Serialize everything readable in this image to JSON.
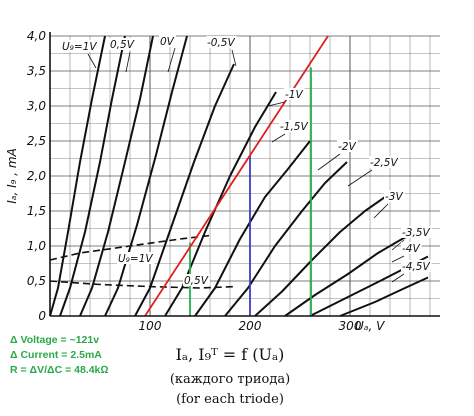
{
  "chart_data": {
    "type": "line",
    "title": "",
    "xlabel": "Uₐ, V",
    "ylabel": "Iₐ, I₉ , mA",
    "xlim": [
      0,
      390
    ],
    "ylim": [
      0,
      4.0
    ],
    "x_ticks": [
      "100",
      "200",
      "300"
    ],
    "y_ticks": [
      "0",
      "0,5",
      "1,0",
      "1,5",
      "2,0",
      "2,5",
      "3,0",
      "3,5",
      "4,0"
    ],
    "grid": true,
    "anode_curves": [
      {
        "name": "U₉=1V",
        "points": [
          [
            0,
            0
          ],
          [
            8,
            0.4
          ],
          [
            18,
            1.2
          ],
          [
            30,
            2.2
          ],
          [
            42,
            3.1
          ],
          [
            55,
            4.0
          ]
        ]
      },
      {
        "name": "0,5V",
        "points": [
          [
            10,
            0
          ],
          [
            20,
            0.4
          ],
          [
            35,
            1.2
          ],
          [
            50,
            2.2
          ],
          [
            62,
            3.1
          ],
          [
            75,
            4.0
          ]
        ]
      },
      {
        "name": "0V",
        "points": [
          [
            30,
            0
          ],
          [
            42,
            0.4
          ],
          [
            58,
            1.2
          ],
          [
            75,
            2.2
          ],
          [
            90,
            3.1
          ],
          [
            103,
            4.0
          ]
        ]
      },
      {
        "name": "-0,5V",
        "points": [
          [
            55,
            0
          ],
          [
            68,
            0.4
          ],
          [
            87,
            1.3
          ],
          [
            106,
            2.3
          ],
          [
            122,
            3.2
          ],
          [
            137,
            4.0
          ]
        ]
      },
      {
        "name": "-1V",
        "points": [
          [
            85,
            0
          ],
          [
            100,
            0.4
          ],
          [
            122,
            1.3
          ],
          [
            144,
            2.2
          ],
          [
            165,
            3.0
          ],
          [
            184,
            3.6
          ]
        ]
      },
      {
        "name": "-1,5V",
        "points": [
          [
            115,
            0
          ],
          [
            132,
            0.4
          ],
          [
            155,
            1.2
          ],
          [
            180,
            2.0
          ],
          [
            205,
            2.7
          ],
          [
            226,
            3.2
          ]
        ]
      },
      {
        "name": "-2V",
        "points": [
          [
            145,
            0
          ],
          [
            165,
            0.4
          ],
          [
            190,
            1.1
          ],
          [
            215,
            1.7
          ],
          [
            238,
            2.1
          ],
          [
            260,
            2.5
          ]
        ]
      },
      {
        "name": "-2,5V",
        "points": [
          [
            175,
            0
          ],
          [
            198,
            0.4
          ],
          [
            225,
            1.0
          ],
          [
            252,
            1.5
          ],
          [
            275,
            1.9
          ],
          [
            297,
            2.2
          ]
        ]
      },
      {
        "name": "-3V",
        "points": [
          [
            205,
            0
          ],
          [
            232,
            0.35
          ],
          [
            262,
            0.8
          ],
          [
            290,
            1.2
          ],
          [
            315,
            1.5
          ],
          [
            335,
            1.7
          ]
        ]
      },
      {
        "name": "-3,5V",
        "points": [
          [
            235,
            0
          ],
          [
            265,
            0.3
          ],
          [
            298,
            0.6
          ],
          [
            328,
            0.9
          ],
          [
            352,
            1.1
          ],
          [
            368,
            1.2
          ]
        ]
      },
      {
        "name": "-4V",
        "points": [
          [
            260,
            0
          ],
          [
            295,
            0.25
          ],
          [
            330,
            0.5
          ],
          [
            360,
            0.72
          ],
          [
            378,
            0.85
          ]
        ]
      },
      {
        "name": "-4,5V",
        "points": [
          [
            290,
            0
          ],
          [
            325,
            0.2
          ],
          [
            355,
            0.4
          ],
          [
            378,
            0.55
          ]
        ]
      }
    ],
    "grid_curves": [
      {
        "name": "U₉=1V grid",
        "points": [
          [
            0,
            0.8
          ],
          [
            30,
            0.9
          ],
          [
            80,
            1.0
          ],
          [
            130,
            1.1
          ],
          [
            160,
            1.15
          ]
        ]
      },
      {
        "name": "0,5V grid",
        "points": [
          [
            0,
            0.5
          ],
          [
            50,
            0.45
          ],
          [
            100,
            0.42
          ],
          [
            150,
            0.4
          ],
          [
            185,
            0.42
          ]
        ]
      }
    ],
    "load_line": {
      "color": "#e02020",
      "points": [
        [
          95,
          0
        ],
        [
          278,
          4.0
        ]
      ]
    },
    "marker_lines": [
      {
        "color": "#22b14c",
        "x": 140,
        "y_top": 1.05
      },
      {
        "color": "#3a3ac8",
        "x": 200,
        "y_top": 2.3
      },
      {
        "color": "#22b14c",
        "x": 261,
        "y_top": 3.55
      }
    ]
  },
  "annotations": {
    "delta_voltage": "Δ Voltage = ~121v",
    "delta_current": "Δ Current = 2.5mA",
    "resistance": "R = ΔV/ΔC = 48.4kΩ"
  },
  "caption": {
    "formula": "Iₐ,  I₉ᵀ = f (Uₐ)",
    "russian": "(каждого триода)",
    "english": "(for each triode)"
  }
}
